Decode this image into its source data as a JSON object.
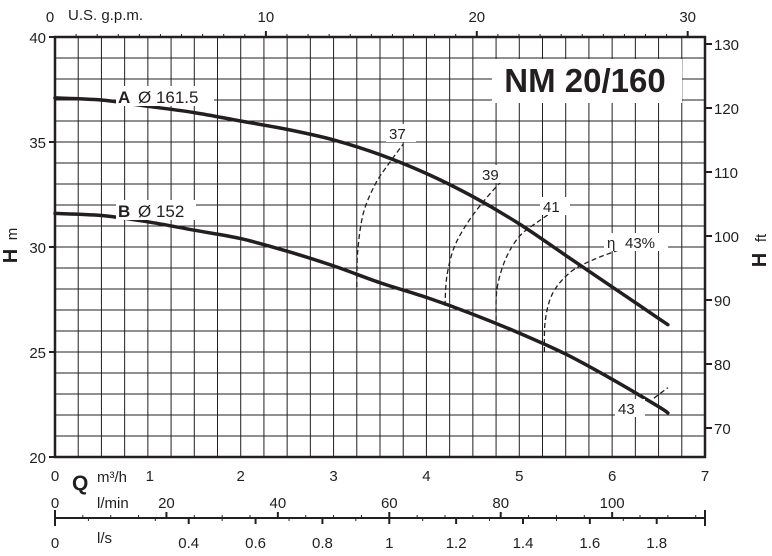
{
  "chart_data": {
    "type": "line",
    "title": "NM 20/160",
    "axes": {
      "top": {
        "label": "U.S. g.p.m.",
        "ticks": [
          "0",
          "10",
          "20",
          "30"
        ]
      },
      "left": {
        "label_main": "H",
        "label_unit": "m",
        "ticks": [
          "20",
          "25",
          "30",
          "35",
          "40"
        ],
        "ylim": [
          20,
          40
        ]
      },
      "right": {
        "label_main": "H",
        "label_unit": "ft",
        "ticks": [
          "70",
          "80",
          "90",
          "100",
          "110",
          "120",
          "130"
        ]
      },
      "bottom_q": {
        "label_main": "Q",
        "label_unit": "m³/h",
        "ticks": [
          "0",
          "1",
          "2",
          "3",
          "4",
          "5",
          "6",
          "7"
        ],
        "xlim": [
          0,
          7
        ]
      },
      "bottom_lmin": {
        "label": "l/min",
        "ticks": [
          "0",
          "20",
          "40",
          "60",
          "80",
          "100"
        ]
      },
      "bottom_ls": {
        "label": "l/s",
        "ticks": [
          "0",
          "0.4",
          "0.6",
          "0.8",
          "1",
          "1.2",
          "1.4",
          "1.6",
          "1.8"
        ]
      }
    },
    "x_unit": "m³/h",
    "y_unit": "m",
    "series": [
      {
        "name": "A",
        "diameter": "Ø 161.5",
        "x": [
          0,
          0.5,
          1,
          1.5,
          2,
          2.5,
          3,
          3.5,
          4,
          4.5,
          5,
          5.5,
          6,
          6.5,
          6.6
        ],
        "y": [
          37.1,
          37.0,
          36.7,
          36.4,
          36.0,
          35.6,
          35.1,
          34.4,
          33.5,
          32.4,
          31.1,
          29.6,
          28.1,
          26.6,
          26.3
        ]
      },
      {
        "name": "B",
        "diameter": "Ø 152",
        "x": [
          0,
          0.5,
          1,
          1.5,
          2,
          2.5,
          3,
          3.5,
          4,
          4.5,
          5,
          5.5,
          6,
          6.5,
          6.6
        ],
        "y": [
          31.6,
          31.5,
          31.2,
          30.8,
          30.4,
          29.8,
          29.1,
          28.3,
          27.6,
          26.8,
          25.9,
          24.9,
          23.7,
          22.4,
          22.1
        ]
      }
    ],
    "efficiency": {
      "symbol": "η",
      "label_37": "37",
      "label_39": "39",
      "label_41": "41",
      "label_43": "43%",
      "label_43_lower": "43",
      "curves": [
        {
          "value": 37,
          "x": [
            3.25,
            3.26,
            3.32,
            3.45,
            3.6,
            3.75
          ],
          "y": [
            28.1,
            29.8,
            31.6,
            33.0,
            34.0,
            34.9
          ]
        },
        {
          "value": 39,
          "x": [
            4.2,
            4.22,
            4.3,
            4.45,
            4.62,
            4.8
          ],
          "y": [
            27.2,
            28.6,
            30.0,
            31.2,
            32.2,
            33.1
          ]
        },
        {
          "value": 41,
          "x": [
            4.75,
            4.76,
            4.85,
            5.0,
            5.2,
            5.4
          ],
          "y": [
            26.5,
            28.0,
            29.4,
            30.5,
            31.2,
            31.8
          ]
        },
        {
          "value": 43,
          "x": [
            5.27,
            5.28,
            5.36,
            5.55,
            5.8,
            6.1
          ],
          "y": [
            25.0,
            26.5,
            27.8,
            28.8,
            29.4,
            29.9
          ]
        },
        {
          "value": 43,
          "x": [
            6.45,
            6.6
          ],
          "y": [
            22.8,
            23.3
          ]
        }
      ]
    }
  }
}
